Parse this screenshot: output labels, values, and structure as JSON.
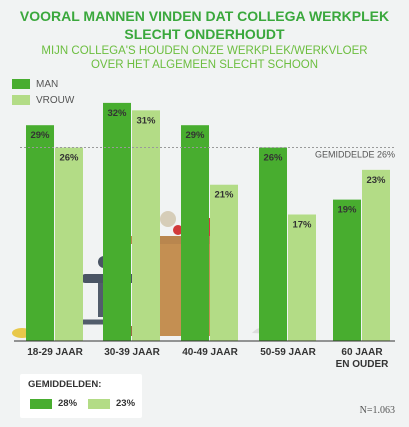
{
  "title_line1": "VOORAL MANNEN VINDEN DAT COLLEGA WERKPLEK",
  "title_line2": "SLECHT ONDERHOUDT",
  "subtitle_line1": "MIJN COLLEGA'S HOUDEN ONZE WERKPLEK/WERKVLOER",
  "subtitle_line2": "OVER HET ALGEMEEN SLECHT SCHOON",
  "legend": {
    "man": "MAN",
    "vrouw": "VROUW"
  },
  "colors": {
    "man": "#48ad2f",
    "vrouw": "#b3dc86",
    "avg_line": "#9a9a9a",
    "title": "#3aa83c"
  },
  "averages": {
    "label": "GEMIDDELDEN:",
    "man": "28%",
    "vrouw": "23%"
  },
  "sample": "N=1.063",
  "chart_data": {
    "type": "bar",
    "categories": [
      "18-29 JAAR",
      "30-39 JAAR",
      "40-49 JAAR",
      "50-59 JAAR",
      "60 JAAR EN OUDER"
    ],
    "category_lines": [
      [
        "18-29 JAAR"
      ],
      [
        "30-39 JAAR"
      ],
      [
        "40-49 JAAR"
      ],
      [
        "50-59 JAAR"
      ],
      [
        "60 JAAR",
        "EN OUDER"
      ]
    ],
    "series": [
      {
        "name": "MAN",
        "values": [
          29,
          32,
          29,
          26,
          19
        ]
      },
      {
        "name": "VROUW",
        "values": [
          26,
          31,
          21,
          17,
          23
        ]
      }
    ],
    "value_labels": [
      [
        "29%",
        "32%",
        "29%",
        "26%",
        "19%"
      ],
      [
        "26%",
        "31%",
        "21%",
        "17%",
        "23%"
      ]
    ],
    "reference_line": {
      "value": 26,
      "label": "GEMIDDELDE 26%"
    },
    "ylim": [
      0,
      34
    ],
    "grid": false,
    "legend_position": "top-left"
  }
}
